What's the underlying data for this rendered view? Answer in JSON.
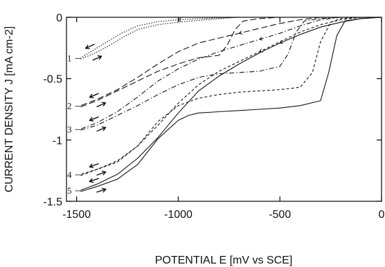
{
  "chart_data": {
    "type": "line",
    "xlabel": "POTENTIAL E [mV vs SCE]",
    "ylabel": "CURRENT DENSITY J [mA cm-2]",
    "xlim": [
      -1550,
      0
    ],
    "ylim": [
      -1.5,
      0
    ],
    "xticks": [
      -1500,
      -1000,
      -500,
      0
    ],
    "xtick_labels": [
      "-1500",
      "-1000",
      "-500",
      "0"
    ],
    "yticks": [
      0,
      -0.5,
      -1,
      -1.5
    ],
    "ytick_labels": [
      "0",
      "-0.5",
      "-1",
      "-1.5"
    ],
    "grid": false,
    "series": [
      {
        "name": "1",
        "style": "dotted",
        "forward": {
          "x": [
            -1480,
            -1420,
            -1350,
            -1280,
            -1200,
            -1100,
            -1000,
            -900,
            -800,
            -750,
            -700
          ],
          "y": [
            -0.34,
            -0.3,
            -0.24,
            -0.17,
            -0.1,
            -0.06,
            -0.04,
            -0.025,
            -0.012,
            -0.005,
            0
          ]
        },
        "backward": {
          "x": [
            -700,
            -800,
            -900,
            -1000,
            -1100,
            -1200,
            -1280,
            -1350,
            -1420,
            -1480
          ],
          "y": [
            0,
            -0.005,
            -0.012,
            -0.02,
            -0.035,
            -0.07,
            -0.13,
            -0.2,
            -0.27,
            -0.33
          ]
        }
      },
      {
        "name": "2",
        "style": "long-dash",
        "forward": {
          "x": [
            -1480,
            -1400,
            -1300,
            -1200,
            -1100,
            -1000,
            -900,
            -800,
            -760,
            -720,
            -680,
            -600,
            -500,
            -400,
            -300
          ],
          "y": [
            -0.73,
            -0.68,
            -0.6,
            -0.52,
            -0.44,
            -0.38,
            -0.33,
            -0.31,
            -0.23,
            -0.1,
            -0.03,
            -0.01,
            0,
            0,
            0
          ]
        },
        "backward": {
          "x": [
            -300,
            -400,
            -500,
            -600,
            -700,
            -800,
            -900,
            -1000,
            -1100,
            -1200,
            -1300,
            -1400,
            -1480
          ],
          "y": [
            0,
            -0.02,
            -0.05,
            -0.09,
            -0.13,
            -0.17,
            -0.21,
            -0.28,
            -0.38,
            -0.49,
            -0.59,
            -0.67,
            -0.72
          ]
        }
      },
      {
        "name": "3",
        "style": "dash-dot",
        "forward": {
          "x": [
            -1480,
            -1400,
            -1300,
            -1200,
            -1100,
            -1000,
            -900,
            -800,
            -700,
            -600,
            -500,
            -460,
            -420,
            -380,
            -300,
            -200
          ],
          "y": [
            -0.92,
            -0.88,
            -0.8,
            -0.72,
            -0.63,
            -0.55,
            -0.49,
            -0.46,
            -0.45,
            -0.44,
            -0.4,
            -0.3,
            -0.12,
            -0.03,
            -0.01,
            0
          ]
        },
        "backward": {
          "x": [
            -200,
            -300,
            -400,
            -500,
            -600,
            -700,
            -800,
            -900,
            -1000,
            -1100,
            -1200,
            -1300,
            -1400,
            -1480
          ],
          "y": [
            0,
            -0.02,
            -0.07,
            -0.13,
            -0.18,
            -0.23,
            -0.28,
            -0.34,
            -0.42,
            -0.52,
            -0.65,
            -0.77,
            -0.86,
            -0.91
          ]
        }
      },
      {
        "name": "4",
        "style": "short-dash",
        "forward": {
          "x": [
            -1480,
            -1400,
            -1300,
            -1200,
            -1100,
            -1000,
            -900,
            -800,
            -700,
            -600,
            -500,
            -400,
            -340,
            -300,
            -250,
            -200,
            -100
          ],
          "y": [
            -1.29,
            -1.24,
            -1.18,
            -1.05,
            -0.85,
            -0.72,
            -0.66,
            -0.63,
            -0.61,
            -0.6,
            -0.59,
            -0.57,
            -0.45,
            -0.2,
            -0.04,
            -0.01,
            0
          ]
        },
        "backward": {
          "x": [
            -100,
            -200,
            -300,
            -400,
            -500,
            -600,
            -700,
            -800,
            -900,
            -1000,
            -1100,
            -1200,
            -1300,
            -1400,
            -1480
          ],
          "y": [
            0,
            -0.02,
            -0.06,
            -0.12,
            -0.2,
            -0.28,
            -0.36,
            -0.44,
            -0.55,
            -0.7,
            -0.88,
            -1.05,
            -1.17,
            -1.24,
            -1.28
          ]
        }
      },
      {
        "name": "5",
        "style": "solid",
        "forward": {
          "x": [
            -1480,
            -1400,
            -1300,
            -1200,
            -1100,
            -1000,
            -950,
            -900,
            -800,
            -700,
            -600,
            -500,
            -400,
            -300,
            -260,
            -220,
            -180,
            -100,
            0
          ],
          "y": [
            -1.42,
            -1.38,
            -1.32,
            -1.2,
            -0.99,
            -0.84,
            -0.8,
            -0.78,
            -0.77,
            -0.76,
            -0.75,
            -0.74,
            -0.72,
            -0.68,
            -0.45,
            -0.15,
            -0.03,
            -0.01,
            0
          ]
        },
        "backward": {
          "x": [
            0,
            -100,
            -200,
            -300,
            -400,
            -500,
            -600,
            -700,
            -800,
            -900,
            -1000,
            -1100,
            -1200,
            -1300,
            -1400,
            -1480
          ],
          "y": [
            0,
            -0.01,
            -0.04,
            -0.08,
            -0.14,
            -0.21,
            -0.29,
            -0.38,
            -0.48,
            -0.6,
            -0.78,
            -0.98,
            -1.15,
            -1.28,
            -1.36,
            -1.41
          ]
        }
      }
    ]
  }
}
